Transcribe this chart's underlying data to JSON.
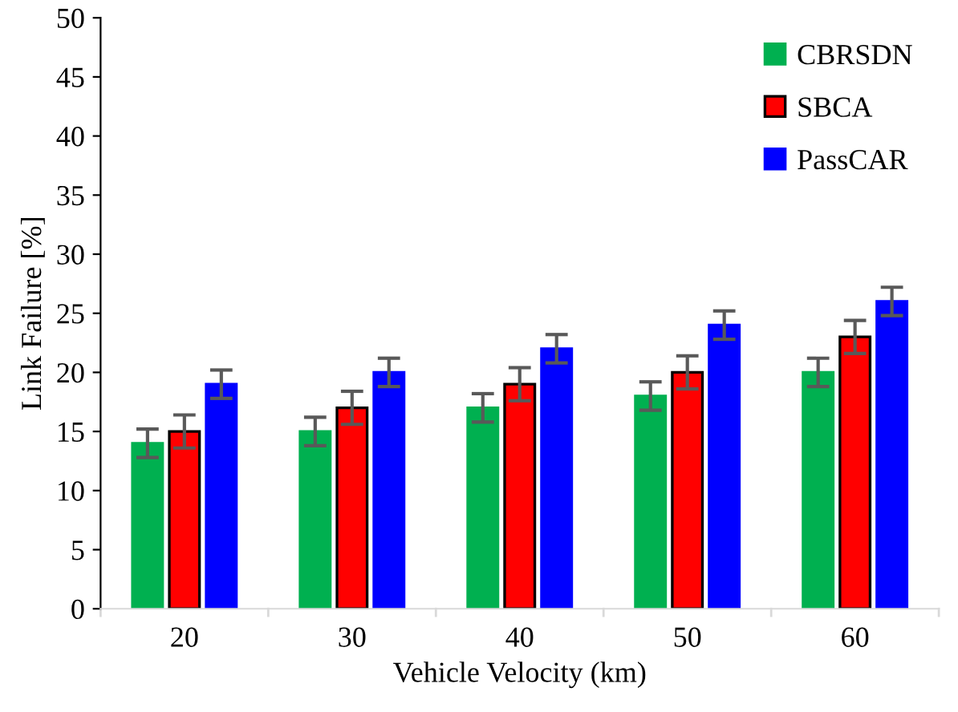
{
  "chart_data": {
    "type": "bar",
    "xlabel": "Vehicle Velocity (km)",
    "ylabel": "Link Failure [%]",
    "categories": [
      "20",
      "30",
      "40",
      "50",
      "60"
    ],
    "series": [
      {
        "name": "CBRSDN",
        "color": "#00b050",
        "values": [
          14,
          15,
          17,
          18,
          20
        ],
        "errors": [
          1.2,
          1.2,
          1.2,
          1.2,
          1.2
        ]
      },
      {
        "name": "SBCA",
        "color": "#ff0000",
        "values": [
          15,
          17,
          19,
          20,
          23
        ],
        "errors": [
          1.4,
          1.4,
          1.4,
          1.4,
          1.4
        ]
      },
      {
        "name": "PassCAR",
        "color": "#0000ff",
        "values": [
          19,
          20,
          22,
          24,
          26
        ],
        "errors": [
          1.2,
          1.2,
          1.2,
          1.2,
          1.2
        ]
      }
    ],
    "ylim": [
      0,
      50
    ],
    "yticks": [
      0,
      5,
      10,
      15,
      20,
      25,
      30,
      35,
      40,
      45,
      50
    ],
    "grid": false,
    "legend": "top right"
  }
}
